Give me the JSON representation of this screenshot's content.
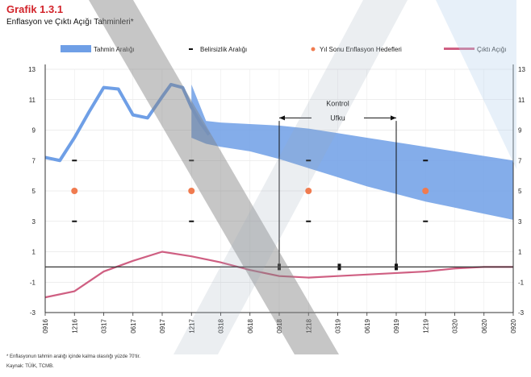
{
  "header": {
    "title": "Grafik 1.3.1",
    "subtitle": "Enflasyon ve Çıktı Açığı Tahminleri*"
  },
  "footer": {
    "footnote": "* Enflasyonun tahmin aralığı içinde kalma olasılığı yüzde 70'tir.",
    "source": "Kaynak: TÜİK, TCMB."
  },
  "chart_data": {
    "type": "line",
    "title": "Grafik 1.3.1",
    "subtitle": "Enflasyon ve Çıktı Açığı Tahminleri*",
    "legend": {
      "placement": "top",
      "entries": [
        "Tahmin Aralığı",
        "Belirsizlik Aralığı",
        "Yıl Sonu Enflasyon Hedefleri",
        "Çıktı Açığı"
      ]
    },
    "annotation": {
      "label_line1": "Kontrol",
      "label_line2": "Ufku",
      "range": [
        "0918",
        "0919"
      ]
    },
    "x_tick_labels": [
      "0916",
      "1216",
      "0317",
      "0617",
      "0917",
      "1217",
      "0318",
      "0618",
      "0918",
      "1218",
      "0319",
      "0619",
      "0919",
      "1219",
      "0320",
      "0620",
      "0920"
    ],
    "y_ticks_left": [
      13,
      11,
      9,
      7,
      5,
      3,
      1,
      -1,
      -3
    ],
    "y_ticks_right": [
      13,
      11,
      9,
      7,
      5,
      3,
      1,
      -1,
      -3
    ],
    "ylim": [
      -3,
      13
    ],
    "grid": true,
    "colors": {
      "band": "#6f9fe6",
      "output_gap": "#cf5f82",
      "target": "#f07b4f",
      "title": "#d2232a"
    },
    "inflation": {
      "x": [
        0,
        0.5,
        1,
        1.5,
        2,
        2.5,
        3,
        3.5,
        4,
        4.3,
        4.7,
        5,
        5.3,
        5.6
      ],
      "y": [
        7.2,
        7.0,
        8.5,
        10.2,
        11.8,
        11.7,
        10.0,
        9.8,
        11.2,
        12.0,
        11.8,
        10.5,
        9.5,
        8.7
      ]
    },
    "forecast_band": {
      "x": [
        5.0,
        5.5,
        6,
        7,
        8,
        9,
        10,
        11,
        12,
        13,
        14,
        15,
        16
      ],
      "upper": [
        12.0,
        9.6,
        9.5,
        9.4,
        9.3,
        9.1,
        8.8,
        8.5,
        8.2,
        7.9,
        7.6,
        7.3,
        7.0
      ],
      "lower": [
        8.5,
        8.1,
        7.9,
        7.6,
        7.1,
        6.5,
        5.9,
        5.3,
        4.8,
        4.3,
        3.9,
        3.5,
        3.1
      ]
    },
    "year_end_targets": {
      "x": [
        1,
        5,
        9,
        13
      ],
      "target": [
        5,
        5,
        5,
        5
      ],
      "upper": [
        7,
        7,
        7,
        7
      ],
      "lower": [
        3,
        3,
        3,
        3
      ]
    },
    "output_gap": {
      "x": [
        0,
        1,
        2,
        3,
        4,
        5,
        6,
        7,
        8,
        9,
        10,
        11,
        12,
        13,
        14,
        15,
        16
      ],
      "y": [
        -2.0,
        -1.6,
        -0.3,
        0.4,
        1.0,
        0.7,
        0.3,
        -0.2,
        -0.6,
        -0.7,
        -0.6,
        -0.5,
        -0.4,
        -0.3,
        -0.1,
        0.0,
        0.0
      ]
    }
  }
}
